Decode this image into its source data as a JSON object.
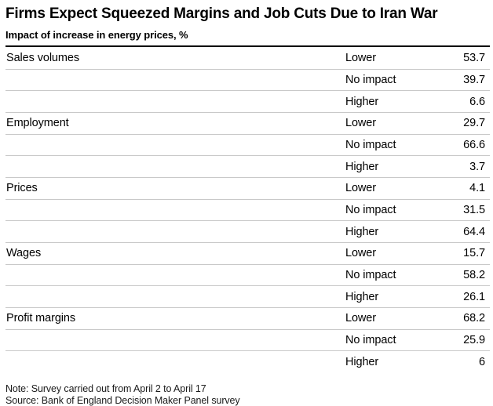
{
  "header": {
    "title": "Firms Expect Squeezed Margins and Job Cuts Due to Iran War",
    "subtitle": "Impact of increase in energy prices, %"
  },
  "chart_data": {
    "type": "table",
    "title": "Firms Expect Squeezed Margins and Job Cuts Due to Iran War",
    "subtitle": "Impact of increase in energy prices, %",
    "unit": "%",
    "categories": [
      "Sales volumes",
      "Employment",
      "Prices",
      "Wages",
      "Profit margins"
    ],
    "impact_options": [
      "Lower",
      "No impact",
      "Higher"
    ],
    "series": [
      {
        "name": "Lower",
        "values": [
          53.7,
          29.7,
          4.1,
          15.7,
          68.2
        ]
      },
      {
        "name": "No impact",
        "values": [
          39.7,
          66.6,
          31.5,
          58.2,
          25.9
        ]
      },
      {
        "name": "Higher",
        "values": [
          6.6,
          3.7,
          64.4,
          26.1,
          6
        ]
      }
    ],
    "note": "Note: Survey carried out from April 2 to April 17",
    "source": "Source: Bank of England Decision Maker Panel survey"
  },
  "table": {
    "rows": [
      {
        "category": "Sales volumes",
        "impact": "Lower",
        "value": "53.7"
      },
      {
        "category": "",
        "impact": "No impact",
        "value": "39.7"
      },
      {
        "category": "",
        "impact": "Higher",
        "value": "6.6"
      },
      {
        "category": "Employment",
        "impact": "Lower",
        "value": "29.7"
      },
      {
        "category": "",
        "impact": "No impact",
        "value": "66.6"
      },
      {
        "category": "",
        "impact": "Higher",
        "value": "3.7"
      },
      {
        "category": "Prices",
        "impact": "Lower",
        "value": "4.1"
      },
      {
        "category": "",
        "impact": "No impact",
        "value": "31.5"
      },
      {
        "category": "",
        "impact": "Higher",
        "value": "64.4"
      },
      {
        "category": "Wages",
        "impact": "Lower",
        "value": "15.7"
      },
      {
        "category": "",
        "impact": "No impact",
        "value": "58.2"
      },
      {
        "category": "",
        "impact": "Higher",
        "value": "26.1"
      },
      {
        "category": "Profit margins",
        "impact": "Lower",
        "value": "68.2"
      },
      {
        "category": "",
        "impact": "No impact",
        "value": "25.9"
      },
      {
        "category": "",
        "impact": "Higher",
        "value": "6"
      }
    ]
  },
  "footer": {
    "note": "Note: Survey carried out from April 2 to April 17",
    "source": "Source: Bank of England Decision Maker Panel survey"
  },
  "colors": {
    "text": "#000000",
    "top_rule": "#000000",
    "row_divider": "#c9c9c9",
    "footer_text": "#1a1a1a",
    "background": "#ffffff"
  }
}
